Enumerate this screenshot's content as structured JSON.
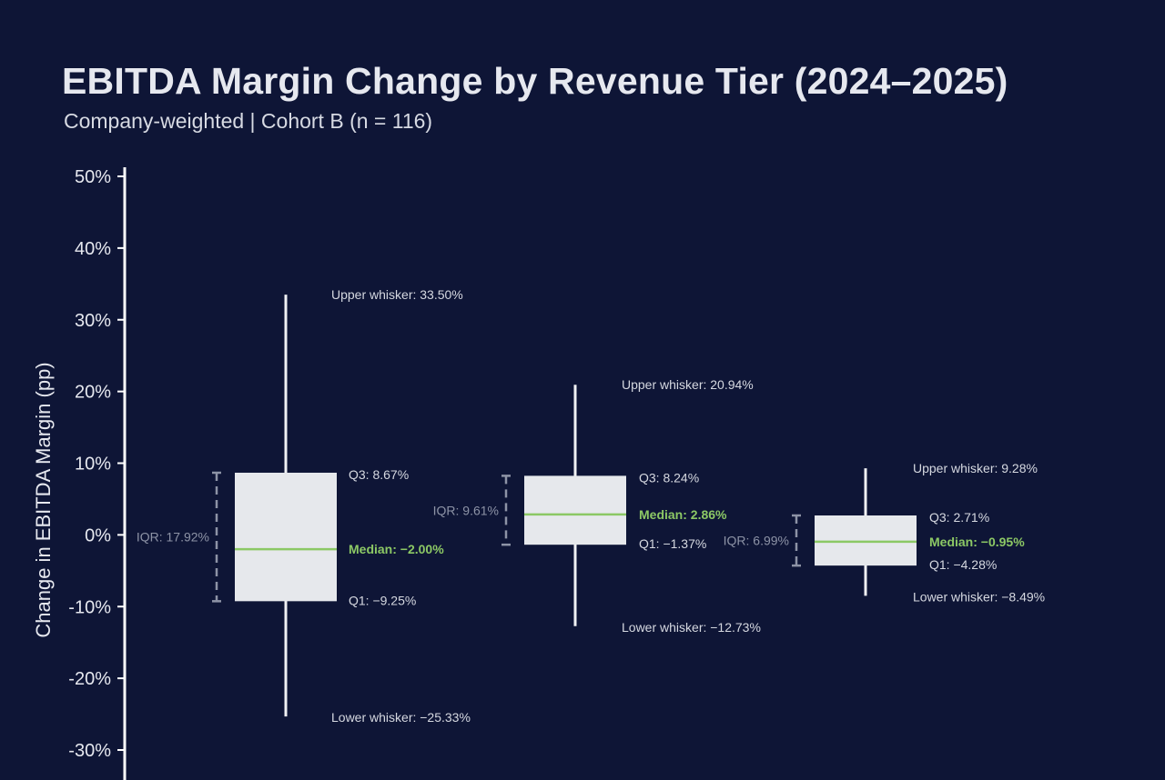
{
  "title": "EBITDA Margin Change by Revenue Tier (2024–2025)",
  "subtitle": "Company-weighted | Cohort B (n = 116)",
  "colors": {
    "background": "#0e1536",
    "box_fill": "#e6e8ec",
    "median": "#8cc865",
    "whisker": "#f0f1f4",
    "iqr_bracket": "#8d93a6",
    "axis": "#ffffff"
  },
  "chart_data": {
    "type": "box",
    "title": "EBITDA Margin Change by Revenue Tier (2024–2025)",
    "subtitle": "Company-weighted | Cohort B (n = 116)",
    "ylabel": "Change in EBITDA Margin (pp)",
    "xlabel": "",
    "ylim": [
      -33,
      50
    ],
    "yticks": [
      50,
      40,
      30,
      20,
      10,
      0,
      -10,
      -20,
      -30
    ],
    "ytick_labels": [
      "50%",
      "40%",
      "30%",
      "20%",
      "10%",
      "0%",
      "-10%",
      "-20%",
      "-30%"
    ],
    "grid": false,
    "boxes": [
      {
        "lower_whisker": -25.33,
        "q1": -9.25,
        "median": -2.0,
        "q3": 8.67,
        "upper_whisker": 33.5,
        "iqr": 17.92,
        "labels": {
          "upper": "Upper whisker: 33.50%",
          "q3": "Q3: 8.67%",
          "median": "Median: −2.00%",
          "q1": "Q1: −9.25%",
          "lower": "Lower whisker: −25.33%",
          "iqr": "IQR: 17.92%"
        }
      },
      {
        "lower_whisker": -12.73,
        "q1": -1.37,
        "median": 2.86,
        "q3": 8.24,
        "upper_whisker": 20.94,
        "iqr": 9.61,
        "labels": {
          "upper": "Upper whisker: 20.94%",
          "q3": "Q3: 8.24%",
          "median": "Median: 2.86%",
          "q1": "Q1: −1.37%",
          "lower": "Lower whisker: −12.73%",
          "iqr": "IQR: 9.61%"
        }
      },
      {
        "lower_whisker": -8.49,
        "q1": -4.28,
        "median": -0.95,
        "q3": 2.71,
        "upper_whisker": 9.28,
        "iqr": 6.99,
        "labels": {
          "upper": "Upper whisker: 9.28%",
          "q3": "Q3: 2.71%",
          "median": "Median: −0.95%",
          "q1": "Q1: −4.28%",
          "lower": "Lower whisker: −8.49%",
          "iqr": "IQR: 6.99%"
        }
      }
    ]
  }
}
